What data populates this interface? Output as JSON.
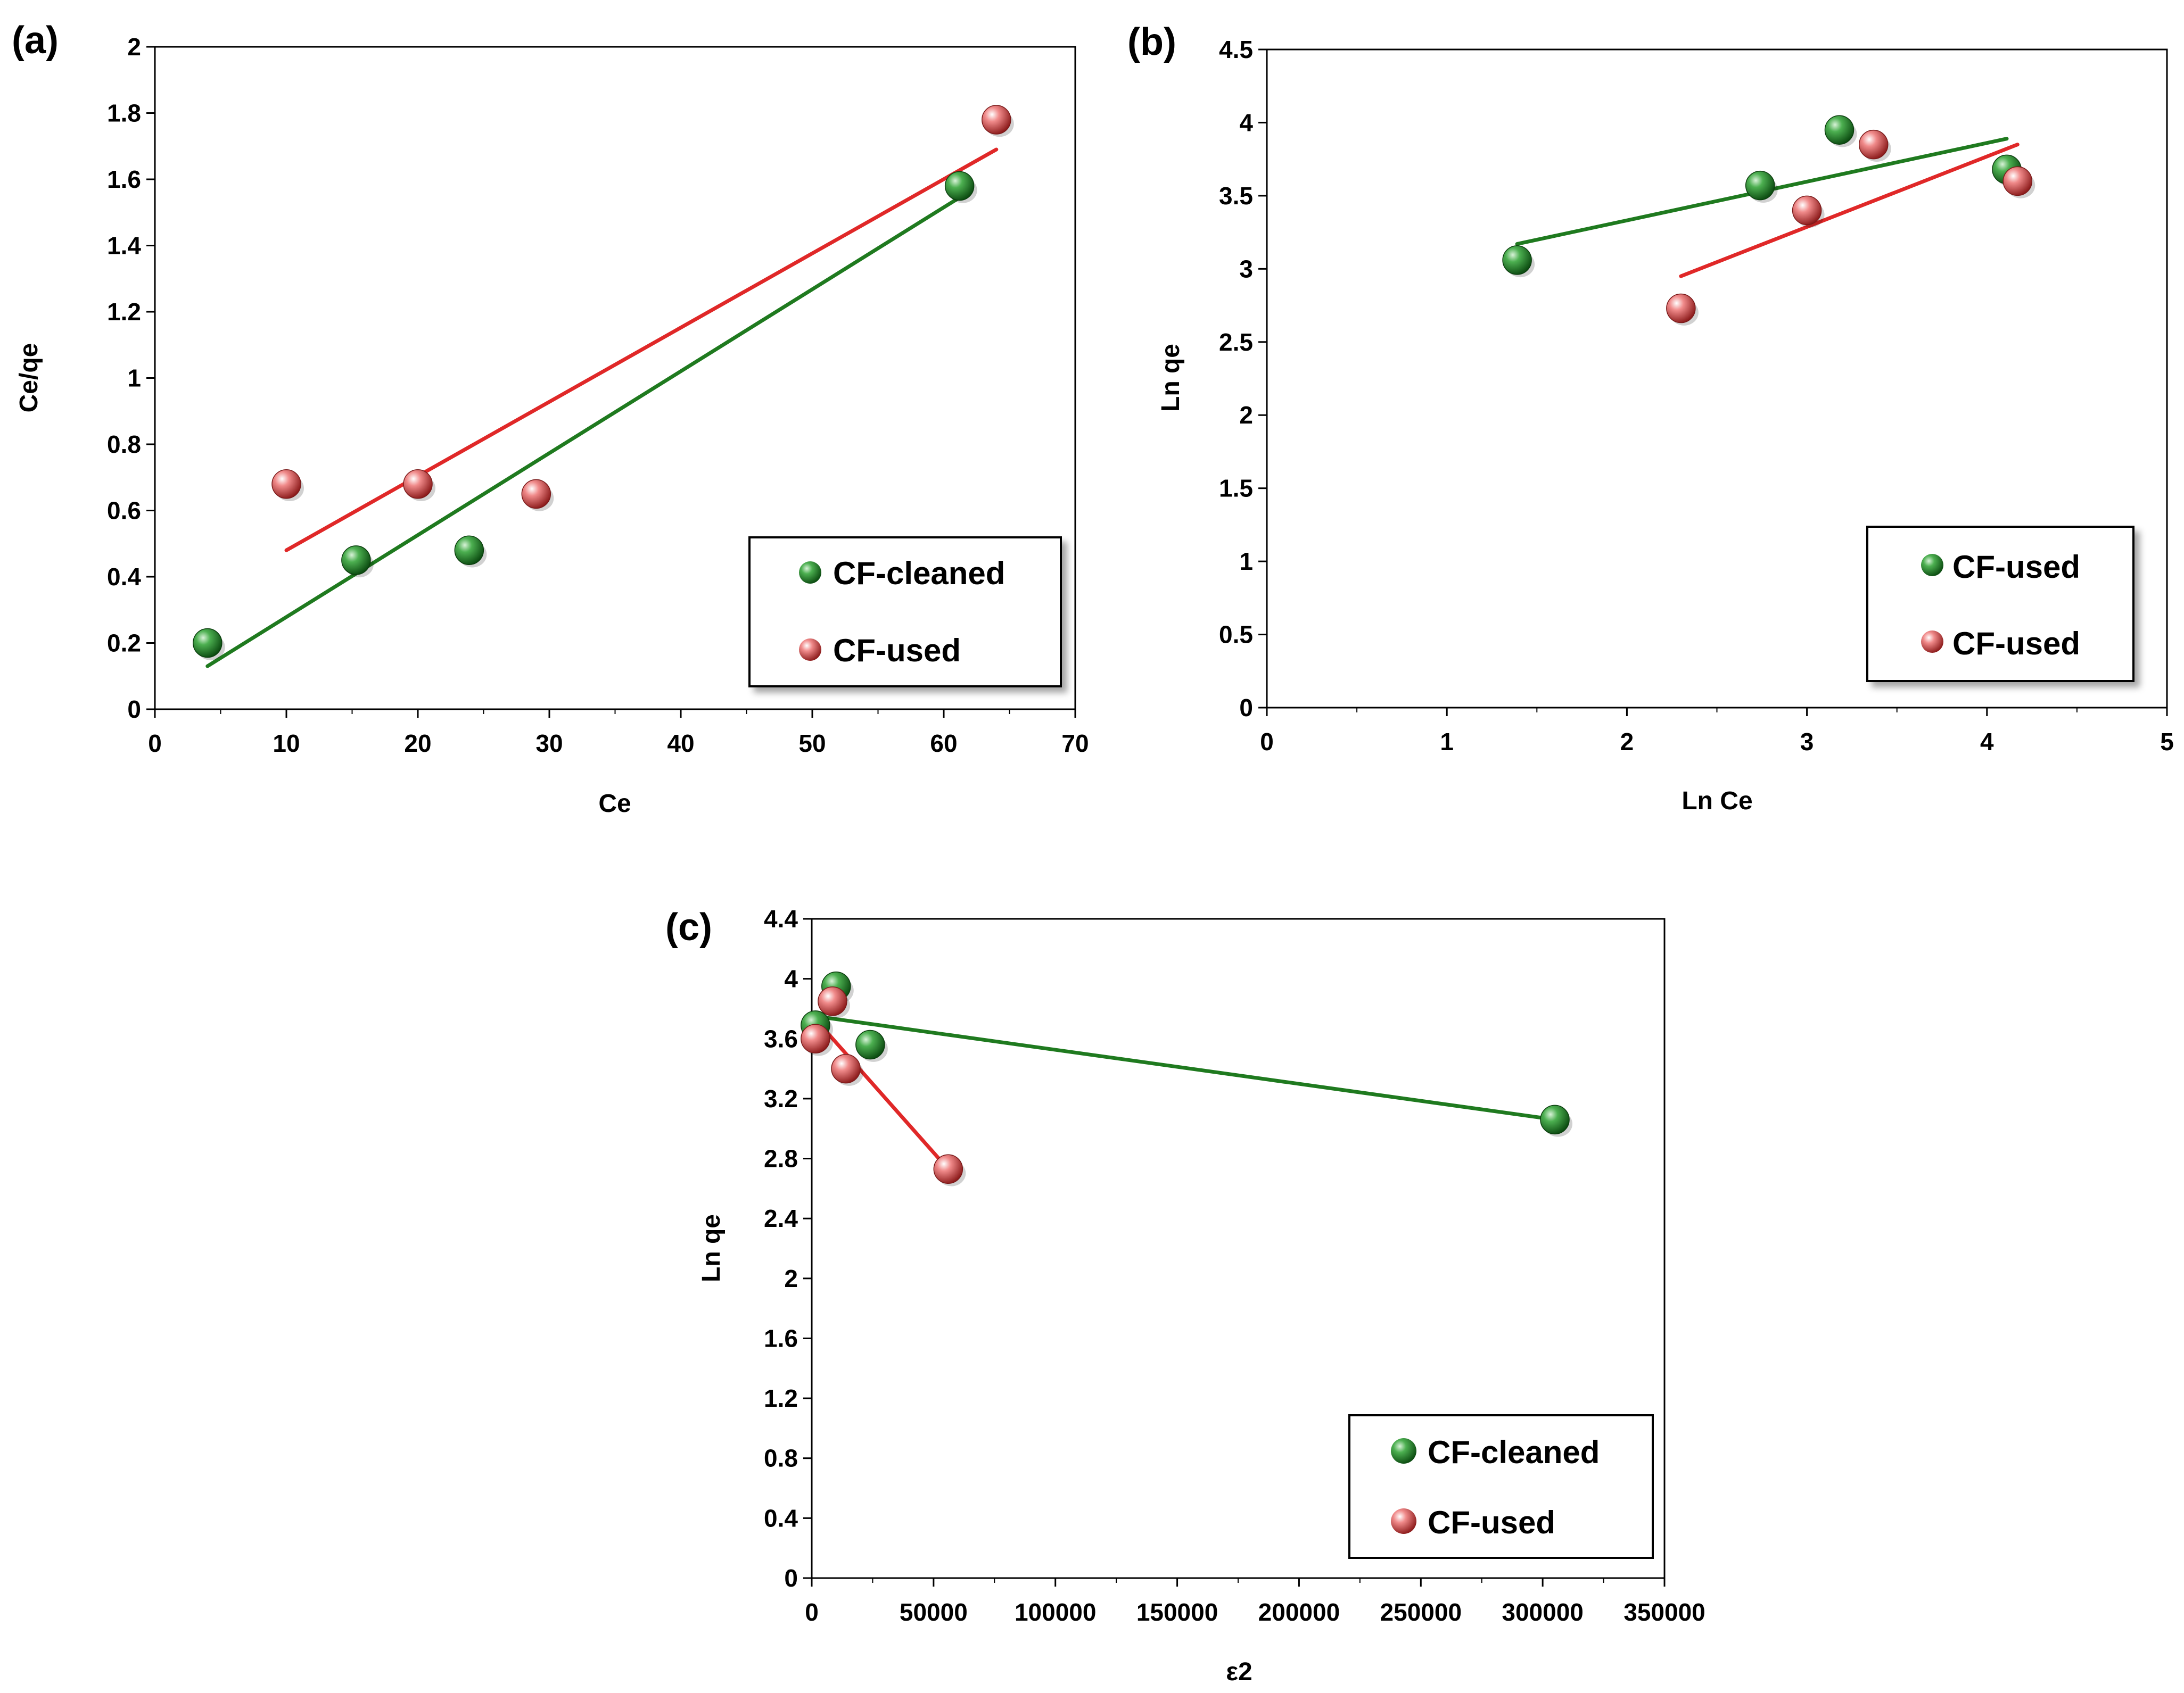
{
  "colors": {
    "green": "#1f7a1f",
    "red": "#e02828",
    "axis": "#000000"
  },
  "chart_data": [
    {
      "panel": "(a)",
      "type": "scatter",
      "xlabel": "Ce",
      "ylabel": "Ce/qe",
      "xlim": [
        0,
        70
      ],
      "ylim": [
        0,
        2
      ],
      "xticks": [
        0,
        10,
        20,
        30,
        40,
        50,
        60,
        70
      ],
      "yticks": [
        0,
        0.2,
        0.4,
        0.6,
        0.8,
        1,
        1.2,
        1.4,
        1.6,
        1.8,
        2
      ],
      "ytick_labels": [
        "0",
        "0.2",
        "0.4",
        "0.6",
        "0.8",
        "1",
        "1.2",
        "1.4",
        "1.6",
        "1.8",
        "2"
      ],
      "legend_position": "bottom-right",
      "series": [
        {
          "name": "CF-cleaned",
          "color": "green",
          "points": [
            [
              4,
              0.2
            ],
            [
              15.3,
              0.45
            ],
            [
              23.9,
              0.48
            ],
            [
              61.2,
              1.58
            ]
          ],
          "fit": [
            [
              4,
              0.13
            ],
            [
              61,
              1.54
            ]
          ]
        },
        {
          "name": "CF-used",
          "color": "red",
          "points": [
            [
              10,
              0.68
            ],
            [
              20,
              0.68
            ],
            [
              29,
              0.65
            ],
            [
              64,
              1.78
            ]
          ],
          "fit": [
            [
              10,
              0.48
            ],
            [
              64,
              1.69
            ]
          ]
        }
      ]
    },
    {
      "panel": "(b)",
      "type": "scatter",
      "xlabel": "Ln Ce",
      "ylabel": "Ln qe",
      "xlim": [
        0,
        5
      ],
      "ylim": [
        0,
        4.5
      ],
      "xticks": [
        0,
        1,
        2,
        3,
        4,
        5
      ],
      "yticks": [
        0,
        0.5,
        1,
        1.5,
        2,
        2.5,
        3,
        3.5,
        4,
        4.5
      ],
      "ytick_labels": [
        "0",
        "0.5",
        "1",
        "1.5",
        "2",
        "2.5",
        "3",
        "3.5",
        "4",
        "4.5"
      ],
      "legend_position": "bottom-right",
      "series": [
        {
          "name": "CF-used",
          "color": "green",
          "points": [
            [
              1.39,
              3.06
            ],
            [
              2.74,
              3.57
            ],
            [
              3.18,
              3.95
            ],
            [
              4.11,
              3.68
            ]
          ],
          "fit": [
            [
              1.39,
              3.17
            ],
            [
              4.11,
              3.89
            ]
          ]
        },
        {
          "name": "CF-used",
          "color": "red",
          "points": [
            [
              2.3,
              2.73
            ],
            [
              3.0,
              3.4
            ],
            [
              3.37,
              3.85
            ],
            [
              4.17,
              3.6
            ]
          ],
          "fit": [
            [
              2.3,
              2.95
            ],
            [
              4.17,
              3.85
            ]
          ]
        }
      ]
    },
    {
      "panel": "(c)",
      "type": "scatter",
      "xlabel": "ε2",
      "ylabel": "Ln qe",
      "xlim": [
        0,
        350000
      ],
      "ylim": [
        0,
        4.4
      ],
      "xticks": [
        0,
        50000,
        100000,
        150000,
        200000,
        250000,
        300000,
        350000
      ],
      "yticks": [
        0,
        0.4,
        0.8,
        1.2,
        1.6,
        2,
        2.4,
        2.8,
        3.2,
        3.6,
        4,
        4.4
      ],
      "ytick_labels": [
        "0",
        "0.4",
        "0.8",
        "1.2",
        "1.6",
        "2",
        "2.4",
        "2.8",
        "3.2",
        "3.6",
        "4",
        "4.4"
      ],
      "legend_position": "bottom-right",
      "series": [
        {
          "name": "CF-cleaned",
          "color": "green",
          "points": [
            [
              1500,
              3.69
            ],
            [
              10000,
              3.95
            ],
            [
              24000,
              3.56
            ],
            [
              305000,
              3.06
            ]
          ],
          "fit": [
            [
              1500,
              3.75
            ],
            [
              305000,
              3.06
            ]
          ]
        },
        {
          "name": "CF-used",
          "color": "red",
          "points": [
            [
              1500,
              3.6
            ],
            [
              8500,
              3.85
            ],
            [
              14000,
              3.4
            ],
            [
              56000,
              2.73
            ]
          ],
          "fit": [
            [
              1500,
              3.73
            ],
            [
              56000,
              2.73
            ]
          ]
        }
      ]
    }
  ]
}
